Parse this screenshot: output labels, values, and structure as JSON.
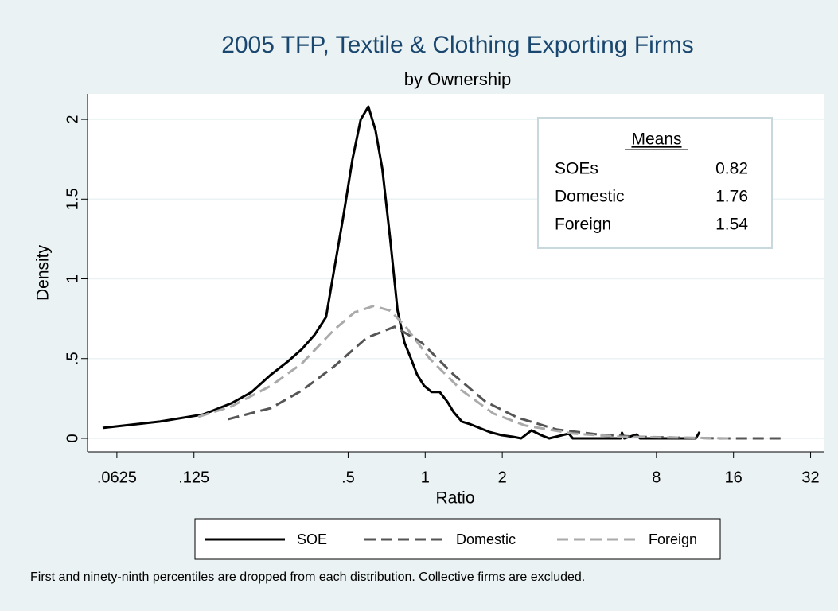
{
  "chart_data": {
    "type": "line",
    "title": "2005 TFP, Textile & Clothing Exporting Firms",
    "subtitle": "by Ownership",
    "x_label": "Ratio",
    "y_label": "Density",
    "x_scale": "log2",
    "xlim": [
      0.048,
      36
    ],
    "ylim": [
      -0.085,
      2.16
    ],
    "xticks": [
      {
        "value": 0.0625,
        "label": ".0625"
      },
      {
        "value": 0.125,
        "label": ".125"
      },
      {
        "value": 0.5,
        "label": ".5"
      },
      1,
      2,
      8,
      16,
      32
    ],
    "yticks": [
      0,
      {
        "value": 0.5,
        "label": ".5"
      },
      1,
      1.5,
      2
    ],
    "grid": true,
    "series": [
      {
        "name": "SOE",
        "color": "#000000",
        "dash": "solid",
        "x": [
          0.055,
          0.092,
          0.136,
          0.175,
          0.21,
          0.25,
          0.29,
          0.33,
          0.37,
          0.41,
          0.44,
          0.48,
          0.52,
          0.56,
          0.6,
          0.64,
          0.68,
          0.73,
          0.78,
          0.83,
          0.88,
          0.93,
          0.99,
          1.06,
          1.14,
          1.22,
          1.29,
          1.39,
          1.49,
          1.6,
          1.78,
          1.99,
          2.2,
          2.37,
          2.6,
          2.84,
          3.05,
          3.64,
          3.77,
          5.8,
          5.87,
          6.0,
          6.7,
          6.9,
          11.4,
          11.8
        ],
        "values": [
          0.065,
          0.105,
          0.15,
          0.22,
          0.29,
          0.4,
          0.48,
          0.56,
          0.65,
          0.76,
          1.05,
          1.4,
          1.75,
          2.0,
          2.08,
          1.93,
          1.69,
          1.25,
          0.8,
          0.6,
          0.5,
          0.4,
          0.33,
          0.29,
          0.29,
          0.23,
          0.165,
          0.105,
          0.09,
          0.07,
          0.04,
          0.02,
          0.01,
          0,
          0.05,
          0.02,
          0,
          0.03,
          0,
          0,
          0.035,
          0,
          0.025,
          0,
          0,
          0.04
        ]
      },
      {
        "name": "Domestic",
        "color": "#555555",
        "dash": "dashed",
        "x": [
          0.17,
          0.25,
          0.33,
          0.44,
          0.59,
          0.76,
          0.97,
          1.29,
          1.72,
          2.29,
          3.27,
          4.7,
          6.7,
          9.6,
          13.7,
          25
        ],
        "values": [
          0.12,
          0.19,
          0.3,
          0.45,
          0.63,
          0.7,
          0.6,
          0.4,
          0.23,
          0.13,
          0.055,
          0.025,
          0.01,
          0.005,
          0,
          0
        ]
      },
      {
        "name": "Foreign",
        "color": "#aaaaaa",
        "dash": "dashed",
        "x": [
          0.13,
          0.175,
          0.25,
          0.33,
          0.44,
          0.53,
          0.63,
          0.73,
          0.84,
          1.04,
          1.39,
          1.85,
          2.46,
          3.77,
          5.8,
          9.6,
          15.7
        ],
        "values": [
          0.135,
          0.2,
          0.33,
          0.47,
          0.68,
          0.79,
          0.83,
          0.8,
          0.7,
          0.5,
          0.3,
          0.155,
          0.08,
          0.03,
          0.01,
          0.005,
          0
        ]
      }
    ],
    "means_table": {
      "title": "Means",
      "rows": [
        {
          "label": "SOEs",
          "value": 0.82
        },
        {
          "label": "Domestic",
          "value": 1.76
        },
        {
          "label": "Foreign",
          "value": 1.54
        }
      ]
    },
    "note": "First and ninety-ninth percentiles are dropped from each distribution. Collective firms are excluded."
  }
}
